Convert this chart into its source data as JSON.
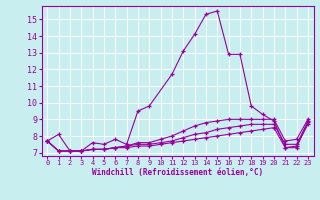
{
  "xlabel": "Windchill (Refroidissement éolien,°C)",
  "background_color": "#c8eef0",
  "line_color": "#990099",
  "grid_color": "#ffffff",
  "xlim": [
    -0.5,
    23.5
  ],
  "ylim": [
    6.8,
    15.8
  ],
  "yticks": [
    7,
    8,
    9,
    10,
    11,
    12,
    13,
    14,
    15
  ],
  "xticks": [
    0,
    1,
    2,
    3,
    4,
    5,
    6,
    7,
    8,
    9,
    10,
    11,
    12,
    13,
    14,
    15,
    16,
    17,
    18,
    19,
    20,
    21,
    22,
    23
  ],
  "lines": [
    {
      "x": [
        0,
        1,
        2,
        3,
        4,
        5,
        6,
        7,
        8,
        9,
        11,
        12,
        13,
        14,
        15,
        16,
        17,
        18,
        19,
        20,
        21,
        22,
        23
      ],
      "y": [
        7.7,
        8.1,
        7.1,
        7.1,
        7.6,
        7.5,
        7.8,
        7.5,
        9.5,
        9.8,
        11.7,
        13.1,
        14.1,
        15.3,
        15.5,
        12.9,
        12.9,
        9.8,
        9.3,
        8.9,
        7.3,
        7.3,
        8.9
      ]
    },
    {
      "x": [
        0,
        1,
        2,
        3,
        4,
        5,
        6,
        7,
        8,
        9,
        10,
        11,
        12,
        13,
        14,
        15,
        16,
        17,
        18,
        19,
        20,
        21,
        22,
        23
      ],
      "y": [
        7.7,
        7.1,
        7.1,
        7.1,
        7.2,
        7.2,
        7.3,
        7.4,
        7.6,
        7.6,
        7.8,
        8.0,
        8.3,
        8.6,
        8.8,
        8.9,
        9.0,
        9.0,
        9.0,
        9.0,
        9.0,
        7.7,
        7.8,
        9.0
      ]
    },
    {
      "x": [
        0,
        1,
        2,
        3,
        4,
        5,
        6,
        7,
        8,
        9,
        10,
        11,
        12,
        13,
        14,
        15,
        16,
        17,
        18,
        19,
        20,
        21,
        22,
        23
      ],
      "y": [
        7.7,
        7.1,
        7.1,
        7.1,
        7.2,
        7.2,
        7.3,
        7.4,
        7.5,
        7.5,
        7.6,
        7.7,
        7.9,
        8.1,
        8.2,
        8.4,
        8.5,
        8.6,
        8.7,
        8.7,
        8.7,
        7.5,
        7.5,
        8.85
      ]
    },
    {
      "x": [
        0,
        1,
        2,
        3,
        4,
        5,
        6,
        7,
        8,
        9,
        10,
        11,
        12,
        13,
        14,
        15,
        16,
        17,
        18,
        19,
        20,
        21,
        22,
        23
      ],
      "y": [
        7.7,
        7.1,
        7.1,
        7.1,
        7.2,
        7.2,
        7.3,
        7.3,
        7.4,
        7.4,
        7.5,
        7.6,
        7.7,
        7.8,
        7.9,
        8.0,
        8.1,
        8.2,
        8.3,
        8.4,
        8.5,
        7.3,
        7.4,
        8.7
      ]
    }
  ]
}
